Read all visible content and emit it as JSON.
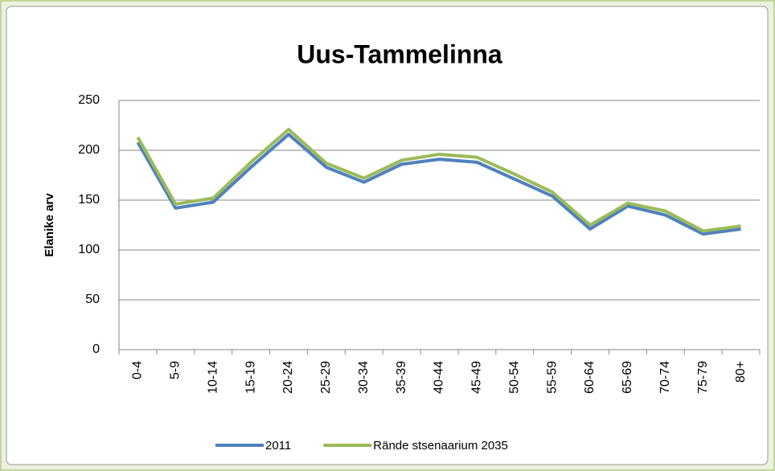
{
  "chart_data": {
    "type": "line",
    "title": "Uus-Tammelinna",
    "y_label": "Elanike arv",
    "categories": [
      "0-4",
      "5-9",
      "10-14",
      "15-19",
      "20-24",
      "25-29",
      "30-34",
      "35-39",
      "40-44",
      "45-49",
      "50-54",
      "55-59",
      "60-64",
      "65-69",
      "70-74",
      "75-79",
      "80+"
    ],
    "series": [
      {
        "name": "2011",
        "color": "#4f81bd",
        "values": [
          208,
          142,
          148,
          183,
          216,
          183,
          168,
          186,
          191,
          188,
          171,
          154,
          121,
          144,
          135,
          116,
          121
        ]
      },
      {
        "name": "Rände stsenaarium 2035",
        "color": "#9bbb59",
        "values": [
          213,
          146,
          152,
          188,
          221,
          187,
          172,
          190,
          196,
          193,
          176,
          158,
          125,
          147,
          139,
          119,
          124
        ]
      }
    ],
    "ylim": [
      0,
      250
    ],
    "yticks": [
      0,
      50,
      100,
      150,
      200,
      250
    ],
    "grid": true,
    "legend": "bottom"
  }
}
